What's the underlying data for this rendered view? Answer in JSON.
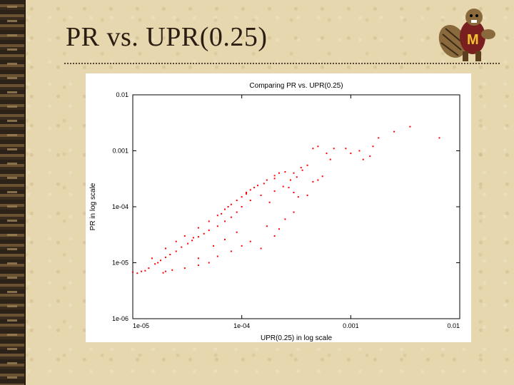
{
  "slide": {
    "title": "PR vs. UPR(0.25)"
  },
  "colors": {
    "background": "#e6d7ae",
    "title_text": "#2b1d12",
    "marker": "#ff0000"
  },
  "icons": {
    "mascot": "gopher-mascot-icon"
  },
  "chart_data": {
    "type": "scatter",
    "title": "Comparing PR vs. UPR(0.25)",
    "xlabel": "UPR(0.25) in log scale",
    "ylabel": "PR in log scale",
    "x_scale": "log",
    "y_scale": "log",
    "xlim": [
      1e-05,
      0.01
    ],
    "ylim": [
      1e-06,
      0.01
    ],
    "x_ticks": [
      "1e-05",
      "1e-04",
      "0.001",
      "0.01"
    ],
    "y_ticks": [
      "1e-06",
      "1e-05",
      "1e-04",
      "0.001",
      "0.01"
    ],
    "grid": false,
    "legend": "none",
    "marker_color": "#ff0000",
    "series": [
      {
        "points": [
          [
            1.2e-05,
            7e-06
          ],
          [
            1.4e-05,
            8e-06
          ],
          [
            1.6e-05,
            9.5e-06
          ],
          [
            1.8e-05,
            1.1e-05
          ],
          [
            2e-05,
            1.25e-05
          ],
          [
            2.2e-05,
            1.4e-05
          ],
          [
            2.5e-05,
            1.6e-05
          ],
          [
            2.8e-05,
            1.9e-05
          ],
          [
            3.2e-05,
            2.2e-05
          ],
          [
            3.5e-05,
            2.5e-05
          ],
          [
            4e-05,
            2.9e-05
          ],
          [
            4.5e-05,
            3.3e-05
          ],
          [
            5e-05,
            3.8e-05
          ],
          [
            6e-05,
            4.5e-05
          ],
          [
            7e-05,
            5.5e-05
          ],
          [
            8e-05,
            6.5e-05
          ],
          [
            9e-05,
            8e-05
          ],
          [
            0.0001,
            0.0001
          ],
          [
            0.00012,
            0.00013
          ],
          [
            0.00015,
            0.00016
          ],
          [
            1.5e-05,
            1.2e-05
          ],
          [
            2e-05,
            1.8e-05
          ],
          [
            2.5e-05,
            2.4e-05
          ],
          [
            3e-05,
            3e-05
          ],
          [
            4e-05,
            4.2e-05
          ],
          [
            5e-05,
            5.5e-05
          ],
          [
            6e-05,
            7e-05
          ],
          [
            7e-05,
            9e-05
          ],
          [
            8e-05,
            0.00011
          ],
          [
            9e-05,
            0.00013
          ],
          [
            0.00011,
            0.00018
          ],
          [
            0.00013,
            0.00022
          ],
          [
            0.00016,
            0.00026
          ],
          [
            2e-05,
            7e-06
          ],
          [
            3e-05,
            8e-06
          ],
          [
            4e-05,
            9e-06
          ],
          [
            5e-05,
            1e-05
          ],
          [
            6e-05,
            1.3e-05
          ],
          [
            8e-05,
            1.6e-05
          ],
          [
            0.0001,
            2e-05
          ],
          [
            4e-05,
            1.2e-05
          ],
          [
            5.5e-05,
            2e-05
          ],
          [
            7e-05,
            2.6e-05
          ],
          [
            9e-05,
            3.5e-05
          ],
          [
            0.0002,
            3e-05
          ],
          [
            0.00015,
            1.8e-05
          ],
          [
            0.00025,
            6e-05
          ],
          [
            0.0003,
            8e-05
          ],
          [
            0.00022,
            4e-05
          ],
          [
            0.00018,
            0.00012
          ],
          [
            0.0002,
            0.00019
          ],
          [
            0.00024,
            0.00023
          ],
          [
            0.00028,
            0.0003
          ],
          [
            0.00032,
            0.00034
          ],
          [
            0.00036,
            0.00045
          ],
          [
            0.0003,
            0.0004
          ],
          [
            0.00035,
            0.0005
          ],
          [
            0.0004,
            0.00055
          ],
          [
            0.00027,
            0.00022
          ],
          [
            0.0003,
            0.00018
          ],
          [
            0.0004,
            0.00016
          ],
          [
            0.00033,
            0.00015
          ],
          [
            0.00045,
            0.00028
          ],
          [
            0.0005,
            0.0003
          ],
          [
            0.00055,
            0.00035
          ],
          [
            0.0006,
            0.0009
          ],
          [
            0.00065,
            0.0007
          ],
          [
            0.0007,
            0.0011
          ],
          [
            0.0009,
            0.0011
          ],
          [
            0.001,
            0.0009
          ],
          [
            0.0012,
            0.001
          ],
          [
            0.0016,
            0.0012
          ],
          [
            0.0018,
            0.0017
          ],
          [
            0.0015,
            0.0008
          ],
          [
            0.0013,
            0.0007
          ],
          [
            0.0025,
            0.0022
          ],
          [
            0.0035,
            0.0027
          ],
          [
            0.0065,
            0.0017
          ],
          [
            0.00045,
            0.0011
          ],
          [
            0.0005,
            0.0012
          ],
          [
            0.0001,
            0.00015
          ],
          [
            0.00011,
            0.00017
          ],
          [
            0.00012,
            0.0002
          ],
          [
            0.00014,
            0.00024
          ],
          [
            0.00017,
            0.0003
          ],
          [
            0.0002,
            0.00036
          ],
          [
            0.00022,
            0.0004
          ],
          [
            0.00025,
            0.00042
          ],
          [
            0.0002,
            0.00032
          ],
          [
            3.6e-05,
            2.8e-05
          ],
          [
            6.5e-05,
            7.5e-05
          ],
          [
            7.5e-05,
            0.0001
          ],
          [
            1.1e-05,
            6.5e-06
          ],
          [
            1.3e-05,
            7.2e-06
          ],
          [
            1.7e-05,
            1e-05
          ],
          [
            1e-05,
            6.8e-06
          ],
          [
            1.9e-05,
            6.6e-06
          ],
          [
            2.3e-05,
            7.4e-06
          ],
          [
            0.00012,
            2.4e-05
          ],
          [
            0.00017,
            4.5e-05
          ]
        ]
      }
    ]
  }
}
